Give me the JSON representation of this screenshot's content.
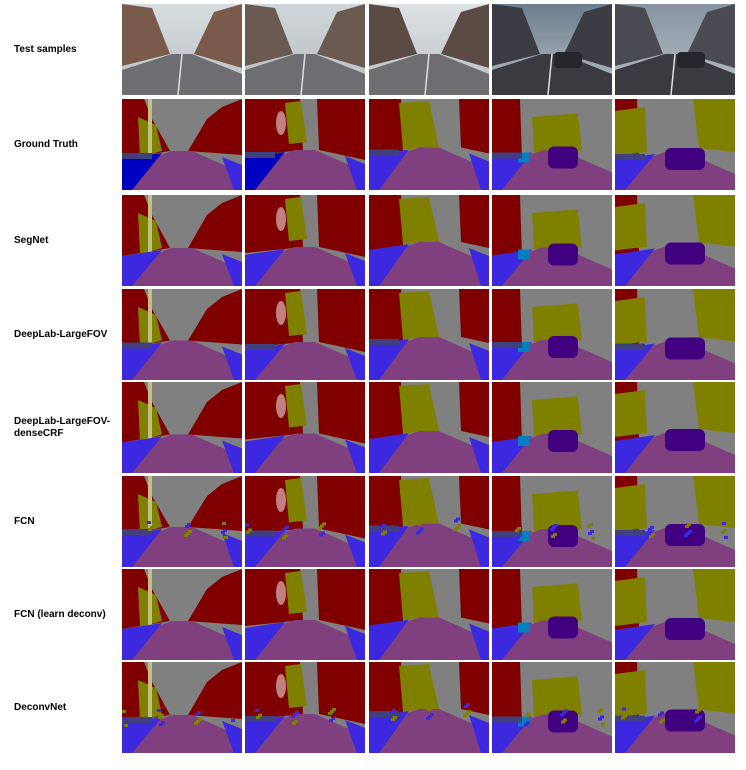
{
  "figure": {
    "rows": [
      {
        "key": "test",
        "label": "Test samples",
        "kind": "photo"
      },
      {
        "key": "gt",
        "label": "Ground Truth",
        "kind": "seg"
      },
      {
        "key": "segnet",
        "label": "SegNet",
        "kind": "seg"
      },
      {
        "key": "deeplab",
        "label": "DeepLab-LargeFOV",
        "kind": "seg"
      },
      {
        "key": "deeplabcrf",
        "label": "DeepLab-LargeFOV-\ndenseCRF",
        "kind": "seg"
      },
      {
        "key": "fcn",
        "label": "FCN",
        "kind": "seg"
      },
      {
        "key": "fcndeconv",
        "label": "FCN (learn deconv)",
        "kind": "seg"
      },
      {
        "key": "deconvnet",
        "label": "DeconvNet",
        "kind": "seg"
      }
    ],
    "columns": 5,
    "class_colors": {
      "sky": "#808080",
      "building": "#800000",
      "tree": "#808000",
      "road": "#804080",
      "sidewalk": "#3c28de",
      "car": "#40007f",
      "pole": "#c0c080",
      "pedestrian": "#c08080",
      "cyclist": "#0080c0",
      "fence": "#404080",
      "pavement": "#0000c0"
    }
  }
}
